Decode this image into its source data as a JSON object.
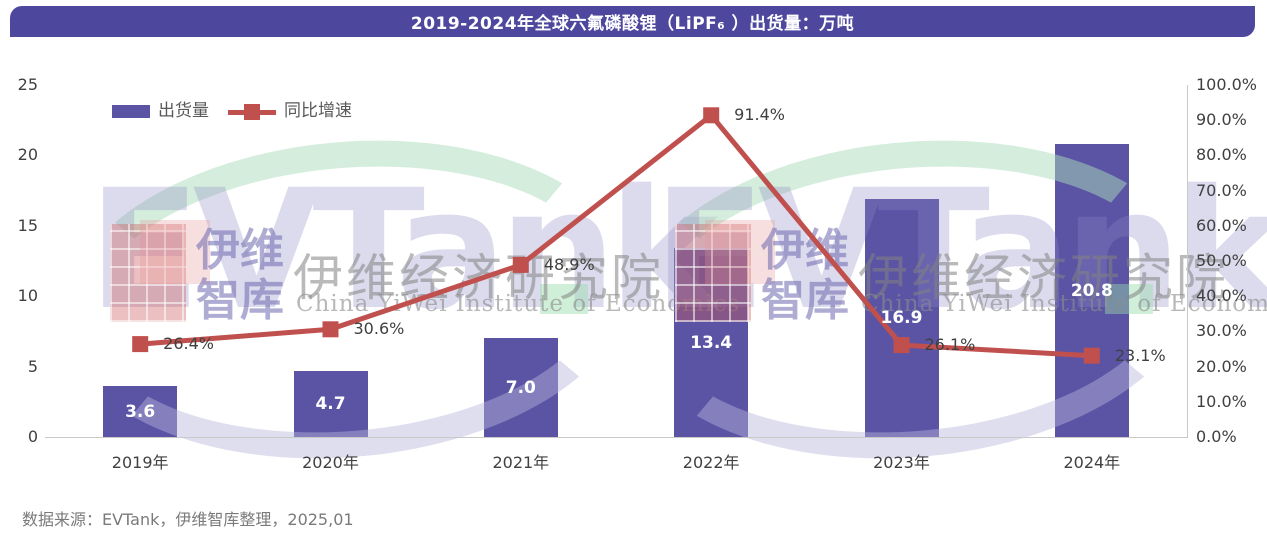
{
  "page": {
    "title": "2019-2024年全球六氟磷酸锂（LiPF₆ ）出货量：万吨",
    "source": "数据来源：EVTank，伊维智库整理，2025,01"
  },
  "legend": [
    {
      "label": "出货量",
      "type": "bar"
    },
    {
      "label": "同比增速",
      "type": "line"
    }
  ],
  "colors": {
    "bar": "#5B54A5",
    "line": "#C0504D",
    "title_bg": "#4E479E",
    "axis_text": "#404040",
    "bar_label_text": "#FFFFFF"
  },
  "watermark": {
    "brand": "EVTank",
    "cn_short_line1": "伊维",
    "cn_short_line2": "智库",
    "cn_title": "伊维经济研究院",
    "en_title": "China YiWei Institute of Economics"
  },
  "chart_data": {
    "type": "bar",
    "subtype": "combo-bar-line",
    "title": "2019-2024年全球六氟磷酸锂（LiPF₆ ）出货量：万吨",
    "categories": [
      "2019年",
      "2020年",
      "2021年",
      "2022年",
      "2023年",
      "2024年"
    ],
    "series": [
      {
        "name": "出货量",
        "chart": "bar",
        "axis": "left",
        "values": [
          3.6,
          4.7,
          7.0,
          13.4,
          16.9,
          20.8
        ],
        "data_labels": [
          "3.6",
          "4.7",
          "7.0",
          "13.4",
          "16.9",
          "20.8"
        ]
      },
      {
        "name": "同比增速",
        "chart": "line",
        "axis": "right",
        "values": [
          26.4,
          30.6,
          48.9,
          91.4,
          26.1,
          23.1
        ],
        "data_labels": [
          "26.4%",
          "30.6%",
          "48.9%",
          "91.4%",
          "26.1%",
          "23.1%"
        ]
      }
    ],
    "left_axis": {
      "min": 0,
      "max": 25,
      "ticks": [
        0,
        5,
        10,
        15,
        20,
        25
      ]
    },
    "right_axis": {
      "min": 0,
      "max": 100,
      "ticks": [
        "0.0%",
        "10.0%",
        "20.0%",
        "30.0%",
        "40.0%",
        "50.0%",
        "60.0%",
        "70.0%",
        "80.0%",
        "90.0%",
        "100.0%"
      ]
    },
    "grid": false,
    "legend_position": "top-left"
  }
}
